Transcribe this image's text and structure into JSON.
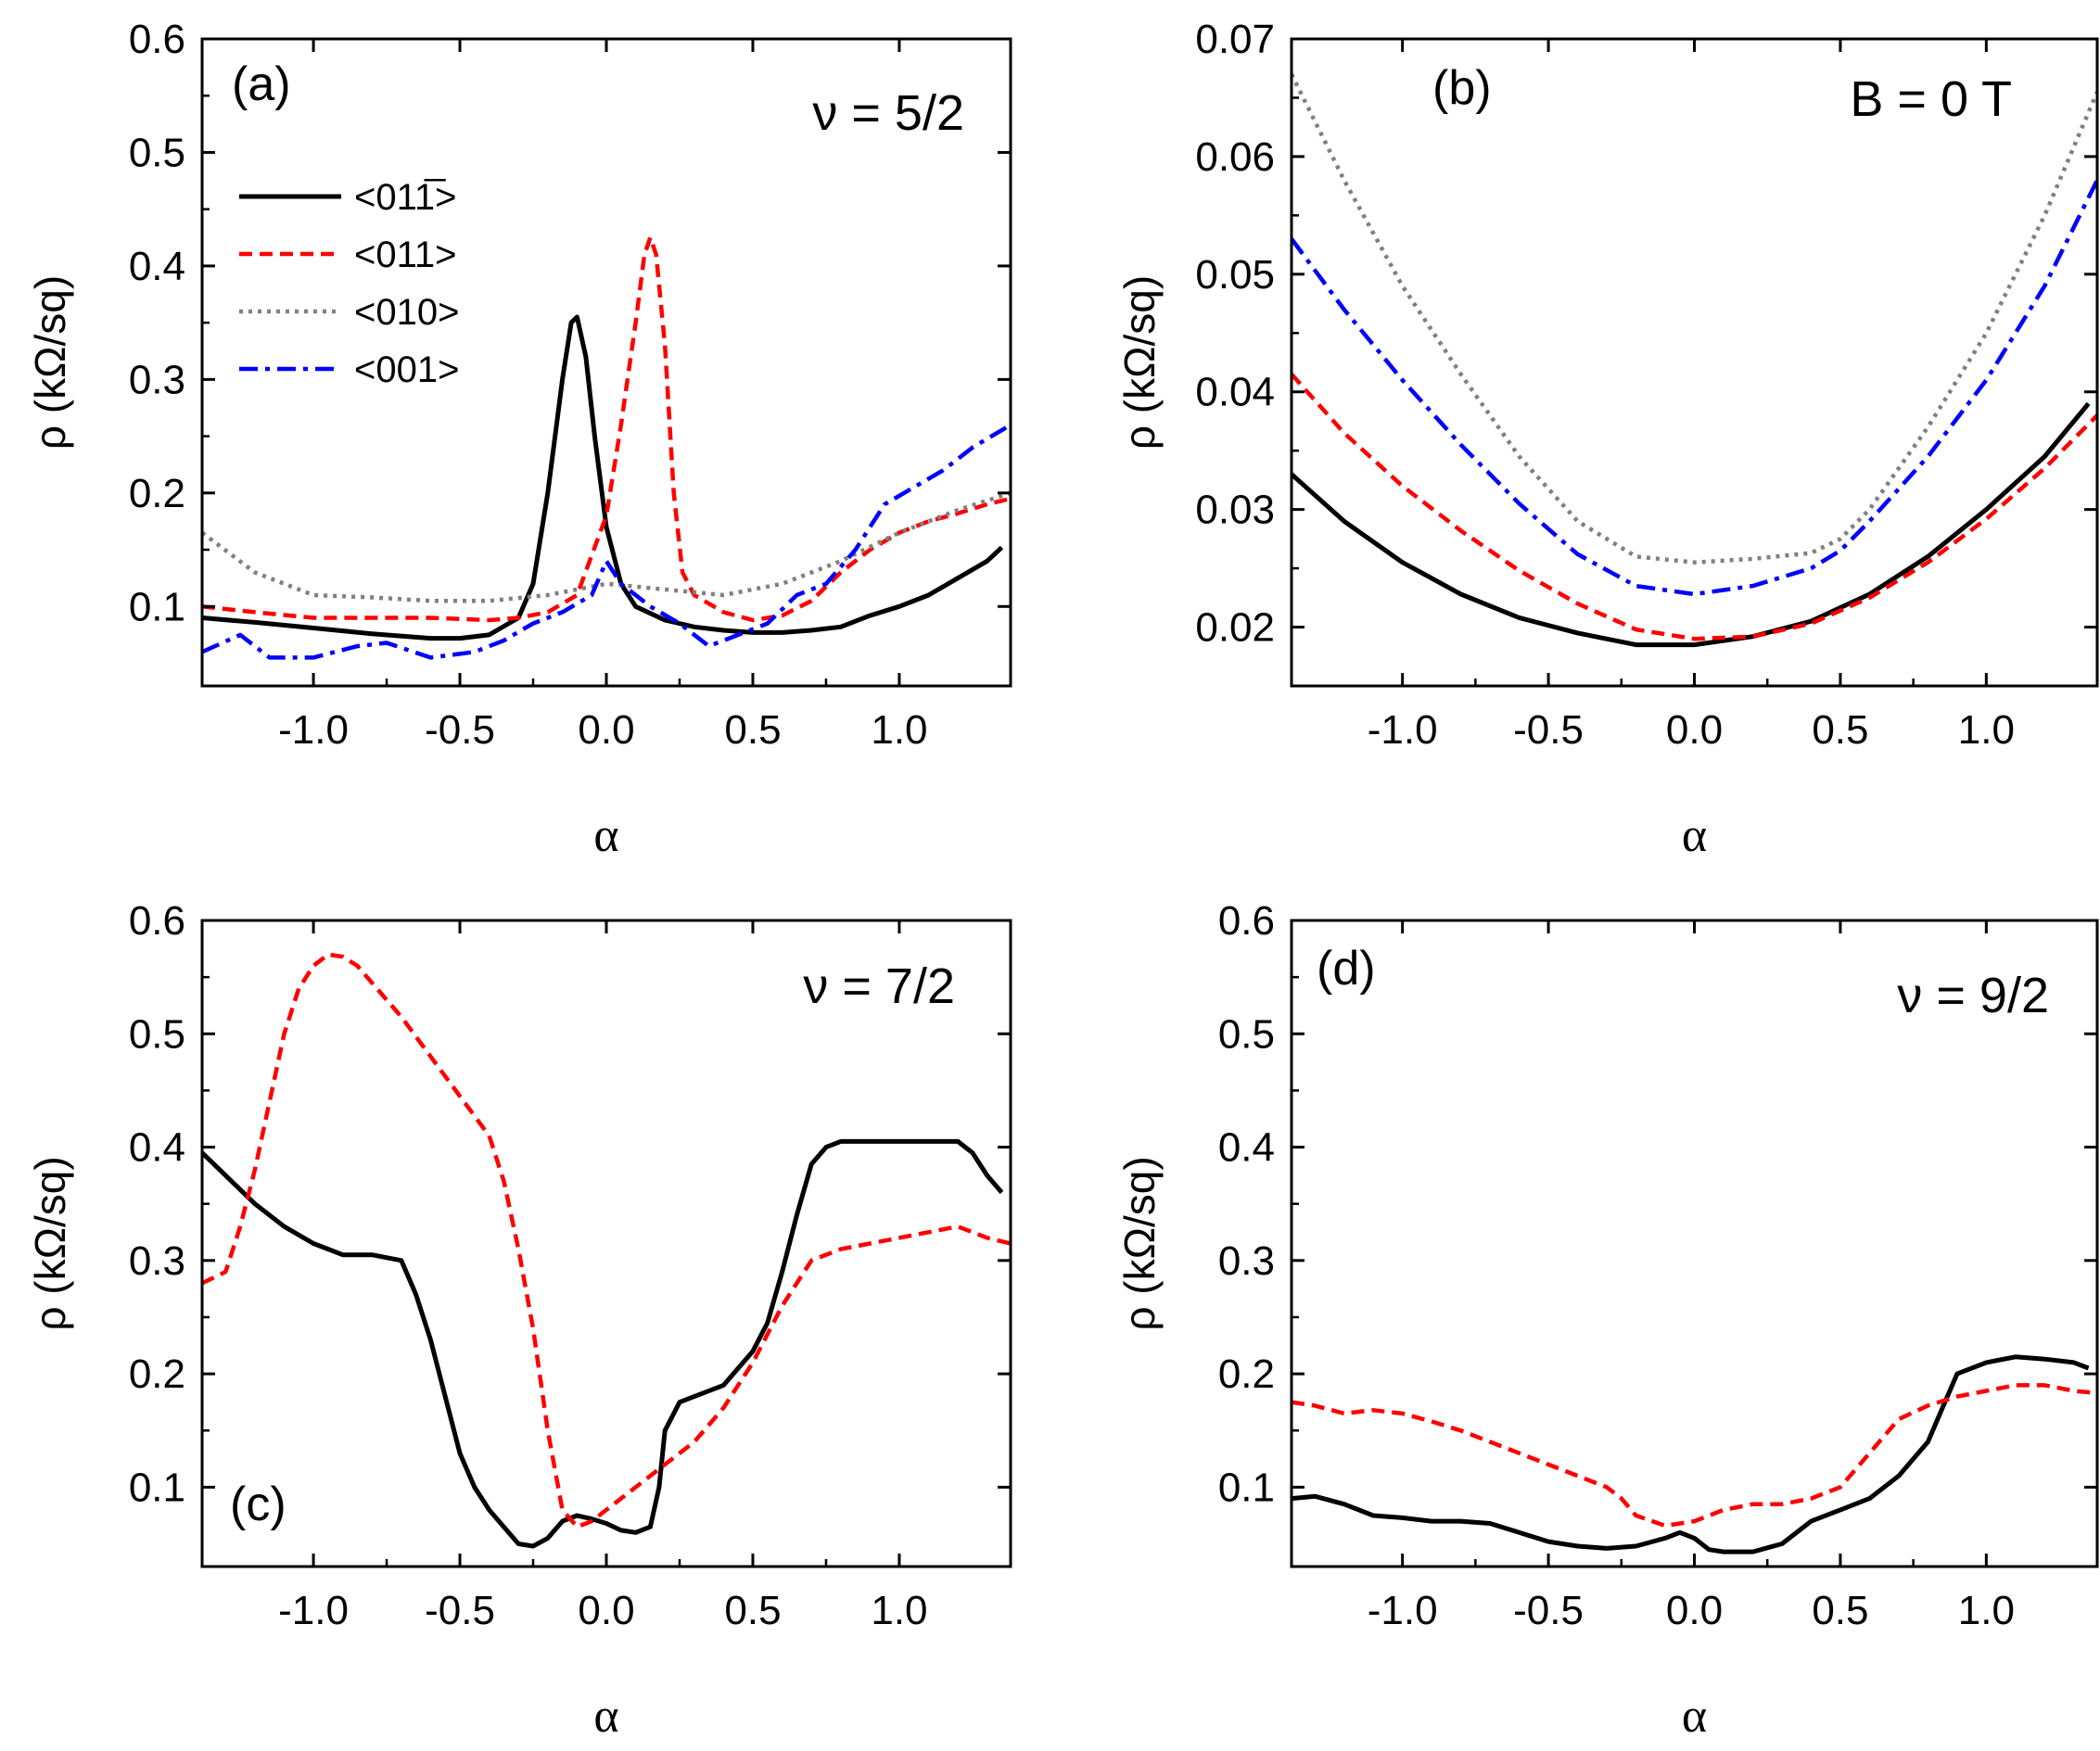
{
  "chart_data": [
    {
      "type": "line",
      "panel": "a",
      "panel_label": "(a)",
      "annotation": "ν = 5/2",
      "xlabel": "α",
      "ylabel": "ρ (kΩ/sq)",
      "xlim": [
        -1.38,
        1.38
      ],
      "ylim": [
        0.03,
        0.6
      ],
      "xticks": [
        -1.0,
        -0.5,
        0.0,
        0.5,
        1.0
      ],
      "xtick_labels": [
        "-1.0",
        "-0.5",
        "0.0",
        "0.5",
        "1.0"
      ],
      "yticks": [
        0.1,
        0.2,
        0.3,
        0.4,
        0.5,
        0.6
      ],
      "ytick_labels": [
        "0.1",
        "0.2",
        "0.3",
        "0.4",
        "0.5",
        "0.6"
      ],
      "legend": "upper-left",
      "series": [
        {
          "name": "<011̅>",
          "style": "solid",
          "color": "#000000",
          "x": [
            -1.38,
            -1.2,
            -1.0,
            -0.8,
            -0.6,
            -0.5,
            -0.4,
            -0.3,
            -0.25,
            -0.2,
            -0.15,
            -0.12,
            -0.1,
            -0.07,
            -0.04,
            0.0,
            0.05,
            0.1,
            0.2,
            0.3,
            0.4,
            0.5,
            0.6,
            0.7,
            0.8,
            0.9,
            1.0,
            1.1,
            1.2,
            1.3,
            1.35
          ],
          "values": [
            0.09,
            0.086,
            0.081,
            0.076,
            0.072,
            0.072,
            0.075,
            0.09,
            0.12,
            0.2,
            0.3,
            0.35,
            0.355,
            0.32,
            0.25,
            0.17,
            0.12,
            0.1,
            0.088,
            0.082,
            0.079,
            0.077,
            0.077,
            0.079,
            0.082,
            0.092,
            0.1,
            0.11,
            0.125,
            0.14,
            0.152
          ]
        },
        {
          "name": "<011>",
          "style": "dashed",
          "color": "#ff0000",
          "x": [
            -1.38,
            -1.2,
            -1.0,
            -0.8,
            -0.6,
            -0.4,
            -0.3,
            -0.2,
            -0.1,
            0.0,
            0.05,
            0.1,
            0.13,
            0.15,
            0.17,
            0.2,
            0.23,
            0.26,
            0.3,
            0.4,
            0.5,
            0.6,
            0.7,
            0.8,
            0.9,
            1.0,
            1.1,
            1.2,
            1.3,
            1.38
          ],
          "values": [
            0.1,
            0.095,
            0.09,
            0.09,
            0.09,
            0.088,
            0.09,
            0.095,
            0.11,
            0.18,
            0.26,
            0.35,
            0.41,
            0.425,
            0.41,
            0.33,
            0.2,
            0.13,
            0.11,
            0.095,
            0.088,
            0.092,
            0.105,
            0.13,
            0.15,
            0.165,
            0.175,
            0.182,
            0.19,
            0.195
          ]
        },
        {
          "name": "<010>",
          "style": "dotted",
          "color": "#808080",
          "x": [
            -1.38,
            -1.2,
            -1.0,
            -0.8,
            -0.6,
            -0.4,
            -0.2,
            0.0,
            0.2,
            0.4,
            0.6,
            0.8,
            1.0,
            1.2,
            1.38
          ],
          "values": [
            0.165,
            0.13,
            0.11,
            0.108,
            0.105,
            0.105,
            0.11,
            0.12,
            0.115,
            0.11,
            0.12,
            0.14,
            0.165,
            0.185,
            0.2
          ]
        },
        {
          "name": "<001>",
          "style": "dashdot",
          "color": "#0000ff",
          "x": [
            -1.38,
            -1.25,
            -1.15,
            -1.0,
            -0.85,
            -0.75,
            -0.6,
            -0.45,
            -0.35,
            -0.25,
            -0.15,
            -0.05,
            0.0,
            0.05,
            0.1,
            0.15,
            0.25,
            0.3,
            0.35,
            0.45,
            0.55,
            0.65,
            0.75,
            0.85,
            0.95,
            1.05,
            1.15,
            1.25,
            1.38
          ],
          "values": [
            0.06,
            0.075,
            0.055,
            0.055,
            0.065,
            0.068,
            0.055,
            0.06,
            0.07,
            0.085,
            0.095,
            0.11,
            0.14,
            0.12,
            0.11,
            0.1,
            0.085,
            0.075,
            0.065,
            0.075,
            0.085,
            0.11,
            0.12,
            0.15,
            0.19,
            0.205,
            0.22,
            0.24,
            0.26
          ]
        }
      ]
    },
    {
      "type": "line",
      "panel": "b",
      "panel_label": "(b)",
      "annotation": "B = 0 T",
      "xlabel": "α",
      "ylabel": "ρ (kΩ/sq)",
      "xlim": [
        -1.38,
        1.38
      ],
      "ylim": [
        0.015,
        0.07
      ],
      "xticks": [
        -1.0,
        -0.5,
        0.0,
        0.5,
        1.0
      ],
      "xtick_labels": [
        "-1.0",
        "-0.5",
        "0.0",
        "0.5",
        "1.0"
      ],
      "yticks": [
        0.02,
        0.03,
        0.04,
        0.05,
        0.06,
        0.07
      ],
      "ytick_labels": [
        "0.02",
        "0.03",
        "0.04",
        "0.05",
        "0.06",
        "0.07"
      ],
      "series": [
        {
          "name": "<011̅>",
          "style": "solid",
          "color": "#000000",
          "x": [
            -1.38,
            -1.2,
            -1.0,
            -0.8,
            -0.6,
            -0.4,
            -0.2,
            0.0,
            0.2,
            0.4,
            0.6,
            0.8,
            1.0,
            1.2,
            1.35
          ],
          "values": [
            0.033,
            0.029,
            0.0255,
            0.0228,
            0.0208,
            0.0195,
            0.0185,
            0.0185,
            0.0192,
            0.0205,
            0.0228,
            0.026,
            0.03,
            0.0345,
            0.039
          ]
        },
        {
          "name": "<011>",
          "style": "dashed",
          "color": "#ff0000",
          "x": [
            -1.38,
            -1.2,
            -1.0,
            -0.8,
            -0.6,
            -0.4,
            -0.2,
            0.0,
            0.2,
            0.4,
            0.6,
            0.8,
            1.0,
            1.2,
            1.38
          ],
          "values": [
            0.0415,
            0.0365,
            0.032,
            0.0282,
            0.0248,
            0.022,
            0.0198,
            0.019,
            0.0192,
            0.0203,
            0.0225,
            0.0255,
            0.0292,
            0.0335,
            0.038
          ]
        },
        {
          "name": "<010>",
          "style": "dotted",
          "color": "#808080",
          "x": [
            -1.38,
            -1.2,
            -1.0,
            -0.8,
            -0.6,
            -0.4,
            -0.2,
            0.0,
            0.2,
            0.4,
            0.5,
            0.6,
            0.8,
            1.0,
            1.2,
            1.38
          ],
          "values": [
            0.067,
            0.058,
            0.049,
            0.0415,
            0.0345,
            0.029,
            0.026,
            0.0255,
            0.0258,
            0.0263,
            0.0275,
            0.03,
            0.037,
            0.045,
            0.055,
            0.0655
          ]
        },
        {
          "name": "<001>",
          "style": "dashdot",
          "color": "#0000ff",
          "x": [
            -1.38,
            -1.2,
            -1.0,
            -0.8,
            -0.6,
            -0.4,
            -0.2,
            0.0,
            0.2,
            0.4,
            0.5,
            0.6,
            0.8,
            1.0,
            1.2,
            1.38
          ],
          "values": [
            0.053,
            0.047,
            0.041,
            0.0355,
            0.0305,
            0.0262,
            0.0235,
            0.0228,
            0.0235,
            0.025,
            0.0265,
            0.029,
            0.0345,
            0.041,
            0.049,
            0.058
          ]
        }
      ]
    },
    {
      "type": "line",
      "panel": "c",
      "panel_label": "(c)",
      "annotation": "ν = 7/2",
      "xlabel": "α",
      "ylabel": "ρ (kΩ/sq)",
      "xlim": [
        -1.38,
        1.38
      ],
      "ylim": [
        0.03,
        0.6
      ],
      "xticks": [
        -1.0,
        -0.5,
        0.0,
        0.5,
        1.0
      ],
      "xtick_labels": [
        "-1.0",
        "-0.5",
        "0.0",
        "0.5",
        "1.0"
      ],
      "yticks": [
        0.1,
        0.2,
        0.3,
        0.4,
        0.5,
        0.6
      ],
      "ytick_labels": [
        "0.1",
        "0.2",
        "0.3",
        "0.4",
        "0.5",
        "0.6"
      ],
      "series": [
        {
          "name": "<011̅>",
          "style": "solid",
          "color": "#000000",
          "x": [
            -1.38,
            -1.3,
            -1.2,
            -1.1,
            -1.0,
            -0.9,
            -0.8,
            -0.7,
            -0.65,
            -0.6,
            -0.55,
            -0.5,
            -0.45,
            -0.4,
            -0.35,
            -0.3,
            -0.25,
            -0.2,
            -0.15,
            -0.1,
            -0.05,
            0.0,
            0.05,
            0.1,
            0.15,
            0.18,
            0.2,
            0.25,
            0.3,
            0.4,
            0.5,
            0.55,
            0.6,
            0.65,
            0.7,
            0.75,
            0.8,
            0.9,
            1.0,
            1.1,
            1.2,
            1.25,
            1.3,
            1.35
          ],
          "values": [
            0.395,
            0.375,
            0.35,
            0.33,
            0.315,
            0.305,
            0.305,
            0.3,
            0.27,
            0.23,
            0.18,
            0.13,
            0.1,
            0.08,
            0.065,
            0.05,
            0.048,
            0.055,
            0.07,
            0.075,
            0.072,
            0.068,
            0.062,
            0.06,
            0.065,
            0.1,
            0.15,
            0.175,
            0.18,
            0.19,
            0.22,
            0.245,
            0.29,
            0.34,
            0.385,
            0.4,
            0.405,
            0.405,
            0.405,
            0.405,
            0.405,
            0.395,
            0.375,
            0.36
          ]
        },
        {
          "name": "<011>",
          "style": "dashed",
          "color": "#ff0000",
          "x": [
            -1.38,
            -1.3,
            -1.25,
            -1.2,
            -1.15,
            -1.1,
            -1.05,
            -1.0,
            -0.95,
            -0.9,
            -0.85,
            -0.8,
            -0.7,
            -0.6,
            -0.5,
            -0.4,
            -0.35,
            -0.3,
            -0.25,
            -0.2,
            -0.15,
            -0.1,
            -0.05,
            0.0,
            0.1,
            0.2,
            0.3,
            0.4,
            0.5,
            0.6,
            0.7,
            0.8,
            0.9,
            1.0,
            1.1,
            1.2,
            1.3,
            1.38
          ],
          "values": [
            0.28,
            0.29,
            0.33,
            0.38,
            0.44,
            0.5,
            0.54,
            0.56,
            0.57,
            0.568,
            0.56,
            0.545,
            0.515,
            0.48,
            0.445,
            0.41,
            0.37,
            0.31,
            0.24,
            0.15,
            0.08,
            0.065,
            0.07,
            0.08,
            0.1,
            0.12,
            0.14,
            0.17,
            0.21,
            0.26,
            0.3,
            0.31,
            0.315,
            0.32,
            0.325,
            0.33,
            0.32,
            0.315
          ]
        }
      ]
    },
    {
      "type": "line",
      "panel": "d",
      "panel_label": "(d)",
      "annotation": "ν = 9/2",
      "xlabel": "α",
      "ylabel": "ρ (kΩ/sq)",
      "xlim": [
        -1.38,
        1.38
      ],
      "ylim": [
        0.03,
        0.6
      ],
      "xticks": [
        -1.0,
        -0.5,
        0.0,
        0.5,
        1.0
      ],
      "xtick_labels": [
        "-1.0",
        "-0.5",
        "0.0",
        "0.5",
        "1.0"
      ],
      "yticks": [
        0.1,
        0.2,
        0.3,
        0.4,
        0.5,
        0.6
      ],
      "ytick_labels": [
        "0.1",
        "0.2",
        "0.3",
        "0.4",
        "0.5",
        "0.6"
      ],
      "series": [
        {
          "name": "<011̅>",
          "style": "solid",
          "color": "#000000",
          "x": [
            -1.38,
            -1.3,
            -1.2,
            -1.1,
            -1.0,
            -0.9,
            -0.8,
            -0.7,
            -0.6,
            -0.5,
            -0.4,
            -0.3,
            -0.2,
            -0.1,
            -0.05,
            0.0,
            0.05,
            0.1,
            0.2,
            0.3,
            0.4,
            0.5,
            0.6,
            0.7,
            0.8,
            0.85,
            0.9,
            1.0,
            1.1,
            1.2,
            1.3,
            1.35
          ],
          "values": [
            0.09,
            0.092,
            0.085,
            0.075,
            0.073,
            0.07,
            0.07,
            0.068,
            0.06,
            0.052,
            0.048,
            0.046,
            0.048,
            0.055,
            0.06,
            0.055,
            0.045,
            0.043,
            0.043,
            0.05,
            0.07,
            0.08,
            0.09,
            0.11,
            0.14,
            0.17,
            0.2,
            0.21,
            0.215,
            0.213,
            0.21,
            0.205
          ]
        },
        {
          "name": "<011>",
          "style": "dashed",
          "color": "#ff0000",
          "x": [
            -1.38,
            -1.3,
            -1.2,
            -1.1,
            -1.0,
            -0.9,
            -0.8,
            -0.7,
            -0.6,
            -0.5,
            -0.4,
            -0.3,
            -0.25,
            -0.2,
            -0.1,
            0.0,
            0.1,
            0.2,
            0.3,
            0.4,
            0.5,
            0.6,
            0.7,
            0.8,
            0.9,
            1.0,
            1.1,
            1.2,
            1.3,
            1.38
          ],
          "values": [
            0.175,
            0.172,
            0.165,
            0.168,
            0.165,
            0.158,
            0.15,
            0.14,
            0.13,
            0.12,
            0.11,
            0.1,
            0.09,
            0.075,
            0.066,
            0.07,
            0.08,
            0.085,
            0.085,
            0.09,
            0.1,
            0.13,
            0.16,
            0.172,
            0.18,
            0.185,
            0.19,
            0.19,
            0.185,
            0.183
          ]
        }
      ]
    }
  ]
}
